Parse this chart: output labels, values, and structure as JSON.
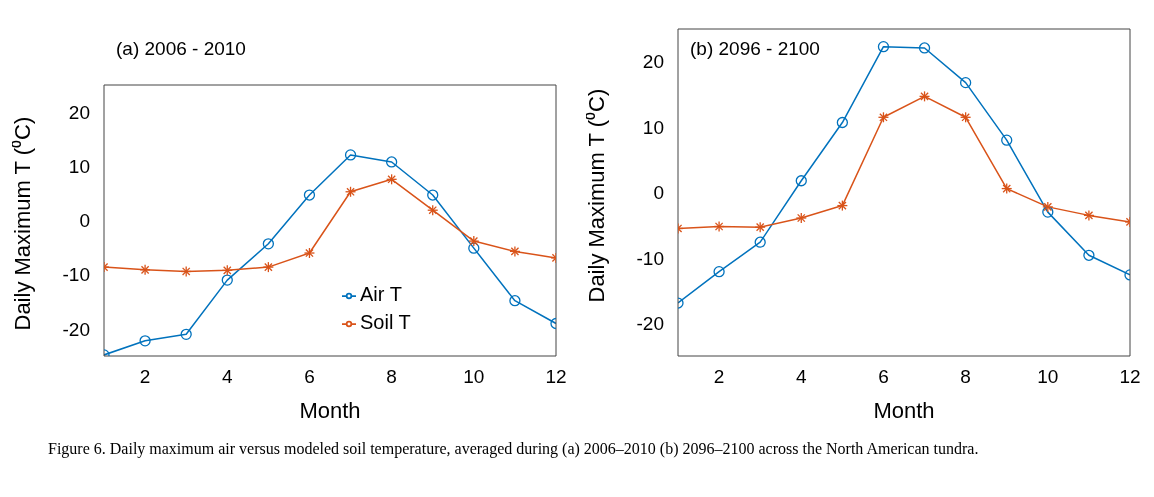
{
  "chart_data": [
    {
      "type": "line",
      "title": "(a) 2006 - 2010",
      "xlabel": "Month",
      "ylabel": "Daily Maximum T (⁰C)",
      "x": [
        1,
        2,
        3,
        4,
        5,
        6,
        7,
        8,
        9,
        10,
        11,
        12
      ],
      "xlim": [
        1,
        12
      ],
      "xticks": [
        2,
        4,
        6,
        8,
        10,
        12
      ],
      "ylim": [
        -25,
        25
      ],
      "yticks": [
        -20,
        -10,
        0,
        10,
        20
      ],
      "grid": false,
      "legend": "bottom",
      "series": [
        {
          "name": "Air T",
          "color": "#0072bd",
          "marker": "circle",
          "values": [
            -24.8,
            -22.2,
            -21,
            -11,
            -4.3,
            4.7,
            12.1,
            10.8,
            4.7,
            -5.1,
            -14.8,
            -19
          ]
        },
        {
          "name": "Soil T",
          "color": "#d95319",
          "marker": "cross",
          "values": [
            -8.6,
            -9.1,
            -9.4,
            -9.2,
            -8.6,
            -6,
            5.3,
            7.6,
            1.9,
            -3.8,
            -5.7,
            -6.9
          ]
        }
      ],
      "annotations": [
        "Figure 6. Daily maximum air versus modeled soil temperature, averaged during (a) 2006–2010 (b) 2096–2100 across the North American tundra."
      ]
    },
    {
      "type": "line",
      "title": "(b) 2096 - 2100",
      "xlabel": "Month",
      "ylabel": "Daily Maximum T (⁰C)",
      "x": [
        1,
        2,
        3,
        4,
        5,
        6,
        7,
        8,
        9,
        10,
        11,
        12
      ],
      "xlim": [
        1,
        12
      ],
      "xticks": [
        2,
        4,
        6,
        8,
        10,
        12
      ],
      "ylim": [
        -25,
        25
      ],
      "yticks": [
        -20,
        -10,
        0,
        10,
        20
      ],
      "grid": false,
      "series": [
        {
          "color": "#0072bd",
          "marker": "circle",
          "values": [
            -16.9,
            -12.1,
            -7.6,
            1.8,
            10.7,
            22.3,
            22.1,
            16.8,
            8,
            -3,
            -9.6,
            -12.6
          ]
        },
        {
          "color": "#d95319",
          "marker": "cross",
          "values": [
            -5.5,
            -5.2,
            -5.3,
            -3.9,
            -2,
            11.5,
            14.7,
            11.5,
            0.6,
            -2.2,
            -3.5,
            -4.5
          ]
        }
      ]
    }
  ]
}
